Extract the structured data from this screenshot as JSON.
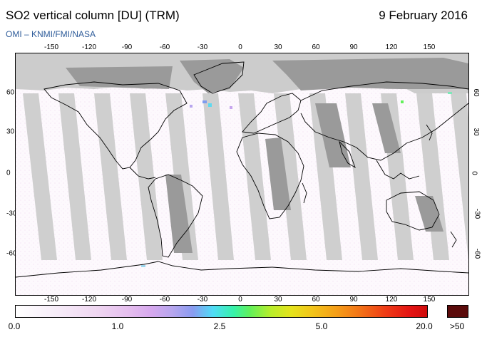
{
  "header": {
    "title": "SO2 vertical column [DU] (TRM)",
    "date": "9 February 2016",
    "credit": "OMI  –  KNMI/FMI/NASA"
  },
  "axes": {
    "lon_ticks": [
      "-150",
      "-120",
      "-90",
      "-60",
      "-30",
      "0",
      "30",
      "60",
      "90",
      "120",
      "150"
    ],
    "lat_ticks": [
      "60",
      "30",
      "0",
      "-30",
      "-60"
    ]
  },
  "colorbar": {
    "labels": [
      "0.0",
      "1.0",
      "2.5",
      "5.0",
      "20.0",
      ">50"
    ]
  },
  "colors": {
    "no_data_fill": "#cccccc",
    "land_no_data_fill": "#999999",
    "coastline": "#000000",
    "max_color": "#5b0b0b"
  }
}
